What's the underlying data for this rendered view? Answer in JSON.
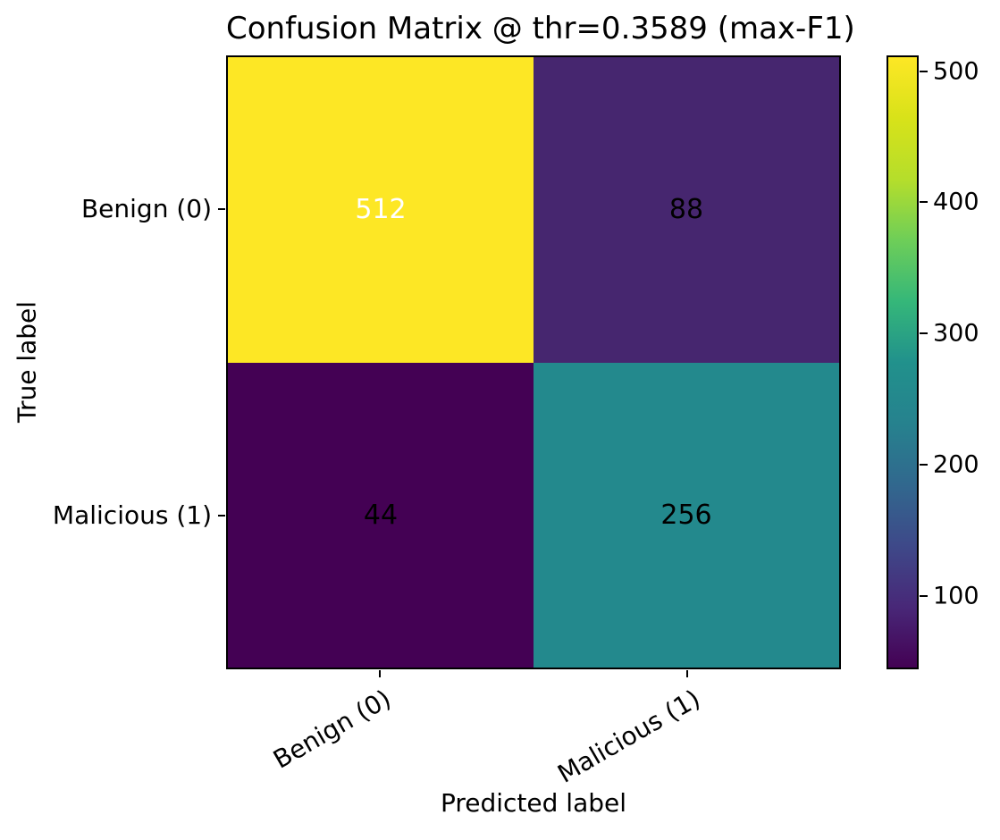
{
  "figure": {
    "background": "#ffffff",
    "text_color": "#000000",
    "axis_color": "#000000"
  },
  "chart_data": {
    "type": "heatmap",
    "title": "Confusion Matrix @ thr=0.3589 (max-F1)",
    "xlabel": "Predicted label",
    "ylabel": "True label",
    "x_tick_labels": [
      "Benign (0)",
      "Malicious (1)"
    ],
    "y_tick_labels": [
      "Benign (0)",
      "Malicious (1)"
    ],
    "matrix": [
      [
        512,
        88
      ],
      [
        44,
        256
      ]
    ],
    "cells": [
      {
        "row": "Benign (0)",
        "col": "Benign (0)",
        "value": 512
      },
      {
        "row": "Benign (0)",
        "col": "Malicious (1)",
        "value": 88
      },
      {
        "row": "Malicious (1)",
        "col": "Benign (0)",
        "value": 44
      },
      {
        "row": "Malicious (1)",
        "col": "Malicious (1)",
        "value": 256
      }
    ],
    "cell_colors": [
      [
        "#fde725",
        "#46266f"
      ],
      [
        "#440154",
        "#23898d"
      ]
    ],
    "cell_text_colors": [
      [
        "#ffffff",
        "#000000"
      ],
      [
        "#000000",
        "#000000"
      ]
    ],
    "colormap": "viridis",
    "layout": {
      "grid": false,
      "legend": false,
      "x_tick_rotation_deg": 30,
      "colorbar_position": "right"
    },
    "colorbar": {
      "vmin": 44,
      "vmax": 512,
      "ticks": [
        100,
        200,
        300,
        400,
        500
      ],
      "gradient_stops": [
        "#440154",
        "#482878",
        "#3e4989",
        "#31688e",
        "#26828e",
        "#21918c",
        "#35b779",
        "#6ece58",
        "#b5de2b",
        "#d8e219",
        "#fde725"
      ]
    }
  }
}
